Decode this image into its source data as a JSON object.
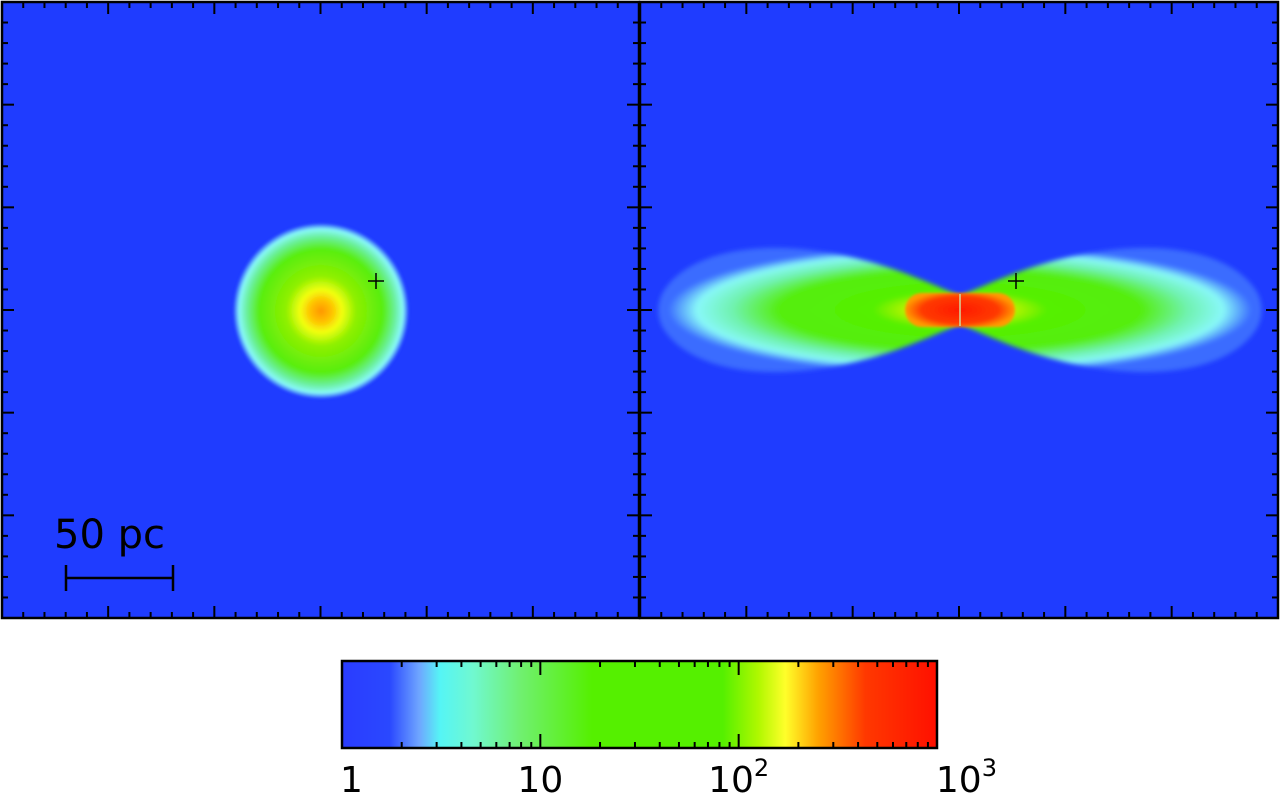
{
  "left_panel": {
    "scale_bar_label": "50 pc",
    "marker": "cross-marker"
  },
  "right_panel": {
    "marker": "cross-marker"
  },
  "colorbar": {
    "scale": "log",
    "range": [
      1,
      1000
    ],
    "tick_labels": [
      {
        "base": "1",
        "exp": ""
      },
      {
        "base": "10",
        "exp": ""
      },
      {
        "base": "10",
        "exp": "2"
      },
      {
        "base": "10",
        "exp": "3"
      }
    ]
  },
  "colors": {
    "background_blue": "#1f3cff",
    "cyan": "#55f5f5",
    "green": "#55f000",
    "yellow": "#ffff2a",
    "orange": "#ff9a00",
    "red": "#ff1500"
  }
}
